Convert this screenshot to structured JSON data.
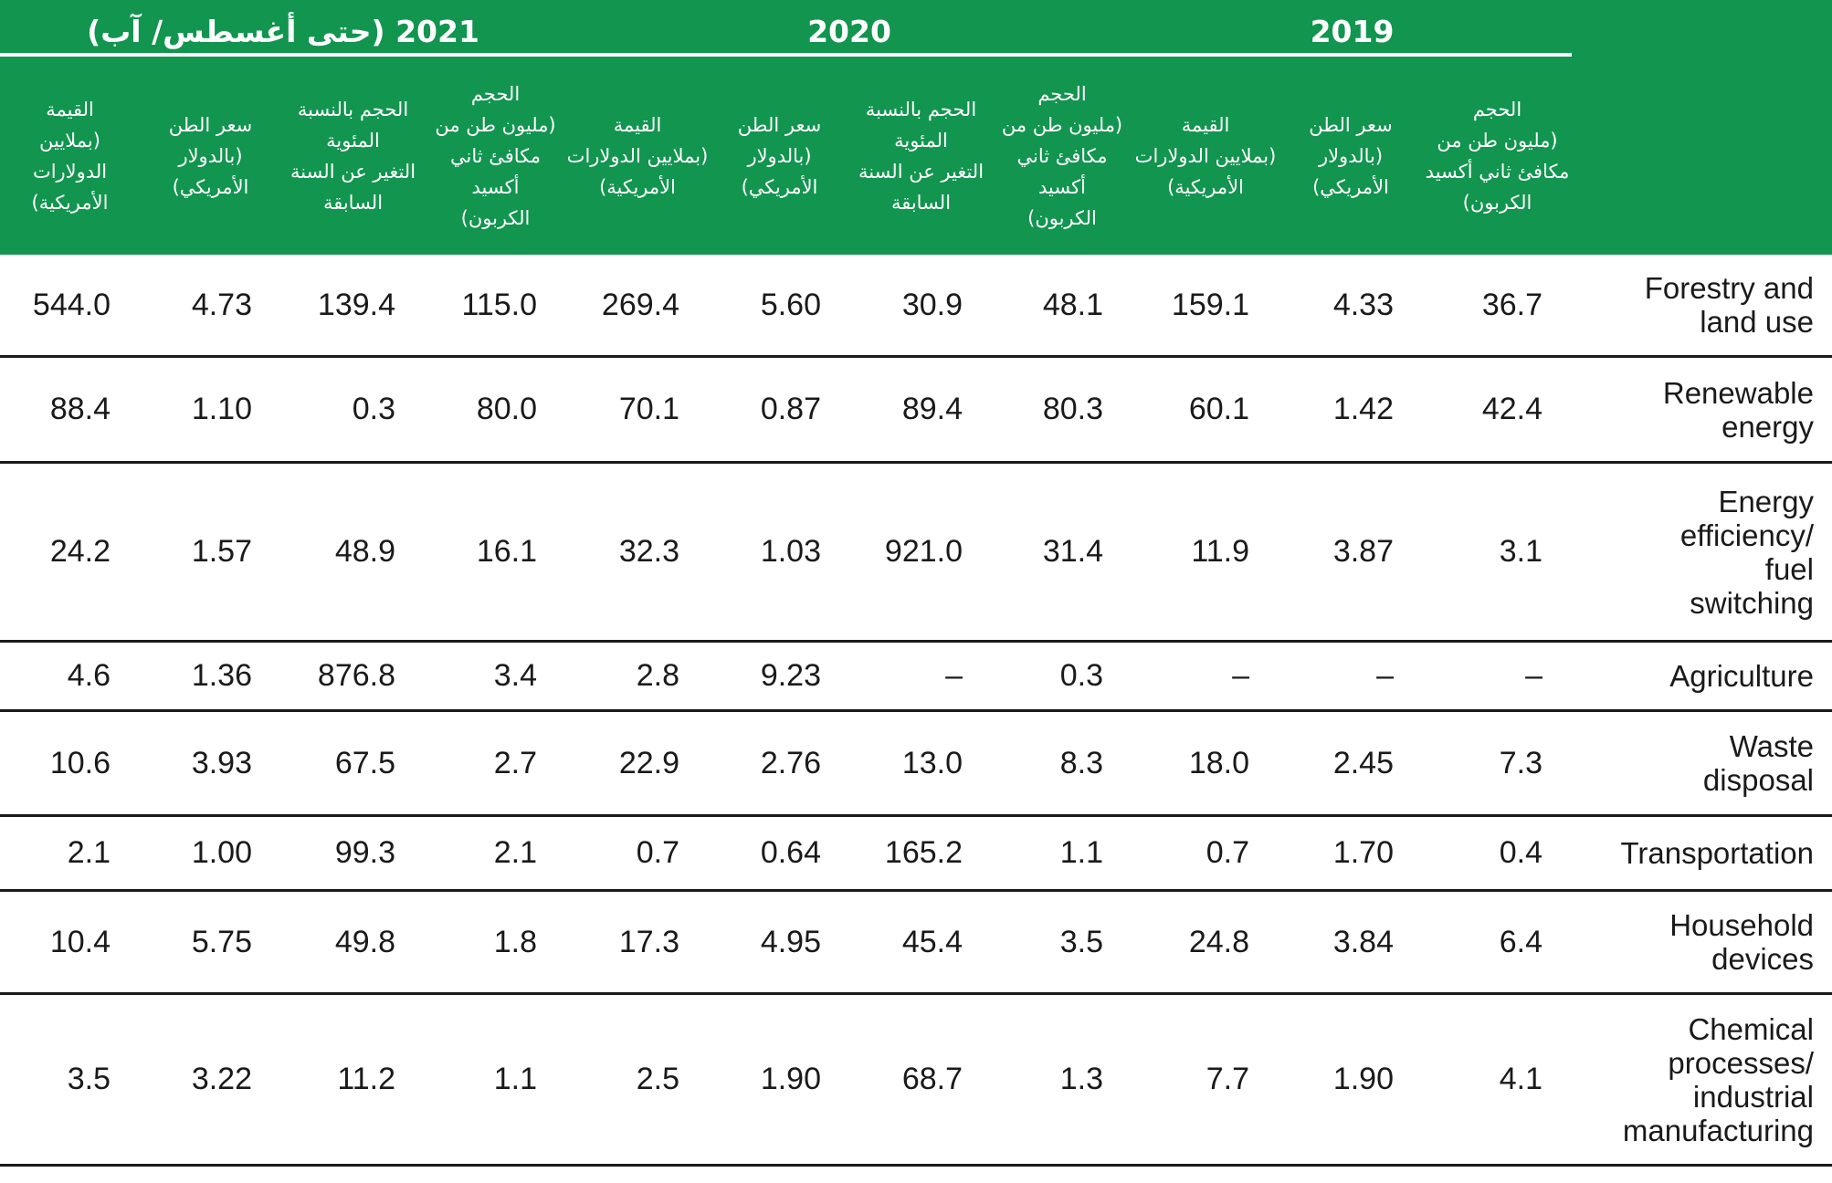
{
  "colors": {
    "header_green": "#12954F",
    "rule_black": "#1a1a1a",
    "header_text": "#ffffff"
  },
  "header": {
    "year_groups": [
      {
        "label": "2021 (حتى أغسطس/ آب)"
      },
      {
        "label": "2020"
      },
      {
        "label": "2019"
      }
    ],
    "columns": [
      {
        "label": "القيمة\n(بملايين الدولارات\nالأمريكية)"
      },
      {
        "label": "سعر الطن\n(بالدولار الأمريكي)"
      },
      {
        "label": "الحجم بالنسبة\nالمئوية\nالتغير عن السنة\nالسابقة"
      },
      {
        "label": "الحجم\n(مليون طن من\nمكافئ ثاني أكسيد\nالكربون)"
      },
      {
        "label": "القيمة\n(بملايين الدولارات\nالأمريكية)"
      },
      {
        "label": "سعر الطن\n(بالدولار الأمريكي)"
      },
      {
        "label": "الحجم بالنسبة\nالمئوية\nالتغير عن السنة\nالسابقة"
      },
      {
        "label": "الحجم\n(مليون طن من\nمكافئ ثاني أكسيد\nالكربون)"
      },
      {
        "label": "القيمة\n(بملايين الدولارات\nالأمريكية)"
      },
      {
        "label": "سعر الطن\n(بالدولار الأمريكي)"
      },
      {
        "label": "الحجم\n(مليون طن من\nمكافئ ثاني أكسيد\nالكربون)"
      }
    ]
  },
  "rows": [
    {
      "label": "Forestry and\nland use",
      "values": [
        "544.0",
        "4.73",
        "139.4",
        "115.0",
        "269.4",
        "5.60",
        "30.9",
        "48.1",
        "159.1",
        "4.33",
        "36.7"
      ]
    },
    {
      "label": "Renewable\nenergy",
      "values": [
        "88.4",
        "1.10",
        "0.3",
        "80.0",
        "70.1",
        "0.87",
        "89.4",
        "80.3",
        "60.1",
        "1.42",
        "42.4"
      ]
    },
    {
      "label": "Energy\nefficiency/\nfuel\nswitching",
      "values": [
        "24.2",
        "1.57",
        "48.9",
        "16.1",
        "32.3",
        "1.03",
        "921.0",
        "31.4",
        "11.9",
        "3.87",
        "3.1"
      ]
    },
    {
      "label": "Agriculture",
      "values": [
        "4.6",
        "1.36",
        "876.8",
        "3.4",
        "2.8",
        "9.23",
        "–",
        "0.3",
        "–",
        "–",
        "–"
      ]
    },
    {
      "label": "Waste\ndisposal",
      "values": [
        "10.6",
        "3.93",
        "67.5",
        "2.7",
        "22.9",
        "2.76",
        "13.0",
        "8.3",
        "18.0",
        "2.45",
        "7.3"
      ]
    },
    {
      "label": "Transportation",
      "values": [
        "2.1",
        "1.00",
        "99.3",
        "2.1",
        "0.7",
        "0.64",
        "165.2",
        "1.1",
        "0.7",
        "1.70",
        "0.4"
      ]
    },
    {
      "label": "Household\ndevices",
      "values": [
        "10.4",
        "5.75",
        "49.8",
        "1.8",
        "17.3",
        "4.95",
        "45.4",
        "3.5",
        "24.8",
        "3.84",
        "6.4"
      ]
    },
    {
      "label": "Chemical\nprocesses/\nindustrial\nmanufacturing",
      "values": [
        "3.5",
        "3.22",
        "11.2",
        "1.1",
        "2.5",
        "1.90",
        "68.7",
        "1.3",
        "7.7",
        "1.90",
        "4.1"
      ]
    }
  ]
}
